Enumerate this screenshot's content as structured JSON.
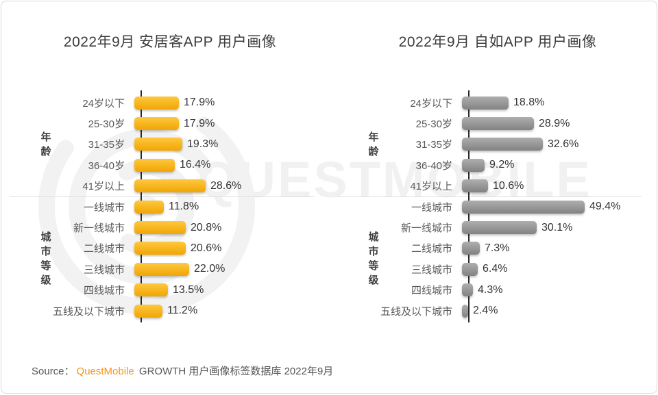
{
  "page": {
    "background": "#ffffff",
    "border_color": "#d9d9d9"
  },
  "watermark": {
    "text": "QUESTMOBILE",
    "logo_name": "questmobile-circle-logo",
    "color": "#f1f1f1"
  },
  "chart_data": [
    {
      "type": "bar",
      "orientation": "horizontal",
      "title": "2022年9月 安居客APP 用户画像",
      "unit": "%",
      "categories": [
        "24岁以下",
        "25-30岁",
        "31-35岁",
        "36-40岁",
        "41岁以上",
        "一线城市",
        "新一线城市",
        "二线城市",
        "三线城市",
        "四线城市",
        "五线及以下城市"
      ],
      "values": [
        17.9,
        17.9,
        19.3,
        16.4,
        28.6,
        11.8,
        20.8,
        20.6,
        22.0,
        13.5,
        11.2
      ],
      "value_labels": [
        "17.9%",
        "17.9%",
        "19.3%",
        "16.4%",
        "28.6%",
        "11.8%",
        "20.8%",
        "20.6%",
        "22.0%",
        "13.5%",
        "11.2%"
      ],
      "groups": [
        {
          "label": "年龄",
          "start": 0,
          "end": 4
        },
        {
          "label": "城市等级",
          "start": 5,
          "end": 10
        }
      ],
      "bar_color_top": "#ffc83d",
      "bar_color_bottom": "#f0a504",
      "xlim": [
        0,
        55
      ],
      "grid": false,
      "legend": false
    },
    {
      "type": "bar",
      "orientation": "horizontal",
      "title": "2022年9月 自如APP 用户画像",
      "unit": "%",
      "categories": [
        "24岁以下",
        "25-30岁",
        "31-35岁",
        "36-40岁",
        "41岁以上",
        "一线城市",
        "新一线城市",
        "二线城市",
        "三线城市",
        "四线城市",
        "五线及以下城市"
      ],
      "values": [
        18.8,
        28.9,
        32.6,
        9.2,
        10.6,
        49.4,
        30.1,
        7.3,
        6.4,
        4.3,
        2.4
      ],
      "value_labels": [
        "18.8%",
        "28.9%",
        "32.6%",
        "9.2%",
        "10.6%",
        "49.4%",
        "30.1%",
        "7.3%",
        "6.4%",
        "4.3%",
        "2.4%"
      ],
      "groups": [
        {
          "label": "年龄",
          "start": 0,
          "end": 4
        },
        {
          "label": "城市等级",
          "start": 5,
          "end": 10
        }
      ],
      "bar_color_top": "#aeaeae",
      "bar_color_bottom": "#828282",
      "xlim": [
        0,
        55
      ],
      "grid": false,
      "legend": false
    }
  ],
  "source": {
    "prefix": "Source：",
    "brand": "QuestMobile",
    "suffix": " GROWTH 用户画像标签数据库 2022年9月",
    "brand_color": "#f7941d"
  }
}
